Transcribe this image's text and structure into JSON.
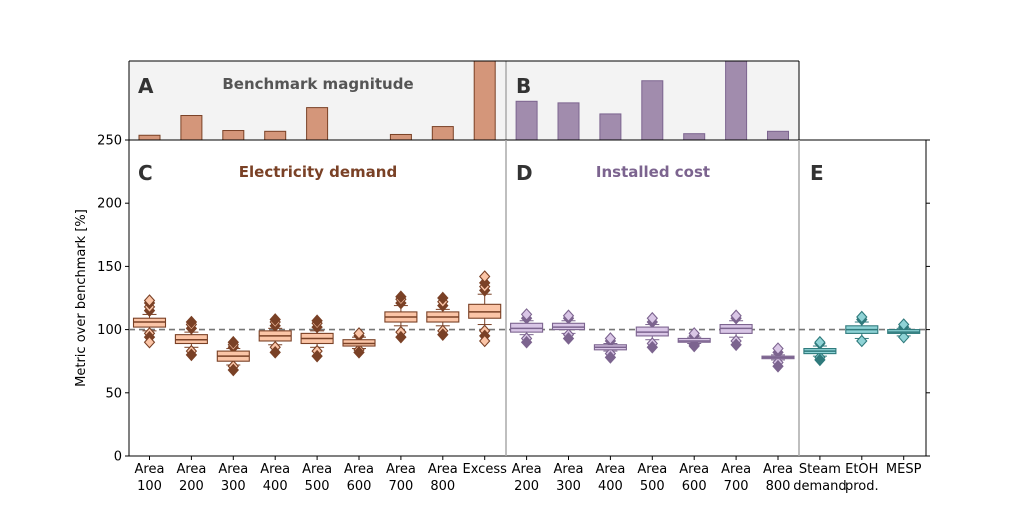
{
  "chart_data": {
    "type": "boxplot",
    "ylabel": "Metric over benchmark [%]",
    "yticks": [
      0,
      50,
      100,
      150,
      200,
      250
    ],
    "ylim": [
      0,
      250
    ],
    "benchmark_reference": 100,
    "top_panel": {
      "letters": [
        "A",
        "B"
      ],
      "title": "Benchmark magnitude",
      "bars": [
        {
          "group": "electricity",
          "value": 0.06
        },
        {
          "group": "electricity",
          "value": 0.31
        },
        {
          "group": "electricity",
          "value": 0.12
        },
        {
          "group": "electricity",
          "value": 0.11
        },
        {
          "group": "electricity",
          "value": 0.41
        },
        {
          "group": "electricity",
          "value": 0.0
        },
        {
          "group": "electricity",
          "value": 0.07
        },
        {
          "group": "electricity",
          "value": 0.17
        },
        {
          "group": "electricity",
          "value": 1.0
        },
        {
          "group": "cost",
          "value": 0.49
        },
        {
          "group": "cost",
          "value": 0.47
        },
        {
          "group": "cost",
          "value": 0.33
        },
        {
          "group": "cost",
          "value": 0.75
        },
        {
          "group": "cost",
          "value": 0.08
        },
        {
          "group": "cost",
          "value": 1.0
        },
        {
          "group": "cost",
          "value": 0.11
        }
      ]
    },
    "panels": [
      {
        "letter": "C",
        "title": "Electricity demand",
        "title_color": "#7a4126"
      },
      {
        "letter": "D",
        "title": "Installed cost",
        "title_color": "#7c648f"
      },
      {
        "letter": "E",
        "title": "",
        "title_color": ""
      }
    ],
    "categories": [
      {
        "label": [
          "Area",
          "100"
        ],
        "group": "electricity",
        "q1": 102,
        "median": 106,
        "q3": 109,
        "wlo": 99,
        "whi": 112,
        "outliers_low": [
          97,
          94,
          90
        ],
        "outliers_high": [
          115,
          118,
          121,
          123
        ]
      },
      {
        "label": [
          "Area",
          "200"
        ],
        "group": "electricity",
        "q1": 89,
        "median": 92,
        "q3": 96,
        "wlo": 86,
        "whi": 98,
        "outliers_low": [
          83,
          80
        ],
        "outliers_high": [
          101,
          104,
          106
        ]
      },
      {
        "label": [
          "Area",
          "300"
        ],
        "group": "electricity",
        "q1": 75,
        "median": 79,
        "q3": 83,
        "wlo": 72,
        "whi": 85,
        "outliers_low": [
          71,
          68
        ],
        "outliers_high": [
          86,
          88,
          90
        ]
      },
      {
        "label": [
          "Area",
          "400"
        ],
        "group": "electricity",
        "q1": 91,
        "median": 95,
        "q3": 99,
        "wlo": 88,
        "whi": 101,
        "outliers_low": [
          86,
          82
        ],
        "outliers_high": [
          103,
          106,
          108
        ]
      },
      {
        "label": [
          "Area",
          "500"
        ],
        "group": "electricity",
        "q1": 89,
        "median": 93,
        "q3": 97,
        "wlo": 86,
        "whi": 99,
        "outliers_low": [
          83,
          79
        ],
        "outliers_high": [
          102,
          105,
          107
        ]
      },
      {
        "label": [
          "Area",
          "600"
        ],
        "group": "electricity",
        "q1": 87,
        "median": 89,
        "q3": 92,
        "wlo": 85,
        "whi": 94,
        "outliers_low": [
          84,
          82
        ],
        "outliers_high": [
          95,
          97
        ]
      },
      {
        "label": [
          "Area",
          "700"
        ],
        "group": "electricity",
        "q1": 106,
        "median": 110,
        "q3": 114,
        "wlo": 103,
        "whi": 119,
        "outliers_low": [
          98,
          94
        ],
        "outliers_high": [
          121,
          124,
          126
        ]
      },
      {
        "label": [
          "Area",
          "800"
        ],
        "group": "electricity",
        "q1": 106,
        "median": 110,
        "q3": 114,
        "wlo": 103,
        "whi": 116,
        "outliers_low": [
          99,
          96
        ],
        "outliers_high": [
          119,
          122,
          125
        ]
      },
      {
        "label": [
          "Excess",
          ""
        ],
        "group": "electricity",
        "q1": 109,
        "median": 114,
        "q3": 120,
        "wlo": 104,
        "whi": 128,
        "outliers_low": [
          99,
          95,
          91
        ],
        "outliers_high": [
          131,
          134,
          137,
          142
        ]
      },
      {
        "label": [
          "Area",
          "200"
        ],
        "group": "cost",
        "q1": 98,
        "median": 101,
        "q3": 105,
        "wlo": 96,
        "whi": 107,
        "outliers_low": [
          93,
          90
        ],
        "outliers_high": [
          109,
          112
        ]
      },
      {
        "label": [
          "Area",
          "300"
        ],
        "group": "cost",
        "q1": 100,
        "median": 102,
        "q3": 105,
        "wlo": 97,
        "whi": 107,
        "outliers_low": [
          96,
          93
        ],
        "outliers_high": [
          109,
          111
        ]
      },
      {
        "label": [
          "Area",
          "400"
        ],
        "group": "cost",
        "q1": 84,
        "median": 86,
        "q3": 88,
        "wlo": 83,
        "whi": 89,
        "outliers_low": [
          81,
          78
        ],
        "outliers_high": [
          91,
          93
        ]
      },
      {
        "label": [
          "Area",
          "500"
        ],
        "group": "cost",
        "q1": 95,
        "median": 98,
        "q3": 102,
        "wlo": 92,
        "whi": 104,
        "outliers_low": [
          89,
          86
        ],
        "outliers_high": [
          106,
          109
        ]
      },
      {
        "label": [
          "Area",
          "600"
        ],
        "group": "cost",
        "q1": 90,
        "median": 91,
        "q3": 93,
        "wlo": 89,
        "whi": 94,
        "outliers_low": [
          88,
          87
        ],
        "outliers_high": [
          95,
          97
        ]
      },
      {
        "label": [
          "Area",
          "700"
        ],
        "group": "cost",
        "q1": 97,
        "median": 101,
        "q3": 104,
        "wlo": 94,
        "whi": 107,
        "outliers_low": [
          91,
          88
        ],
        "outliers_high": [
          109,
          111
        ]
      },
      {
        "label": [
          "Area",
          "800"
        ],
        "group": "cost",
        "q1": 77,
        "median": 78,
        "q3": 79,
        "wlo": 76,
        "whi": 80,
        "outliers_low": [
          74,
          71
        ],
        "outliers_high": [
          82,
          85
        ]
      },
      {
        "label": [
          "Steam",
          "demand"
        ],
        "group": "teal",
        "q1": 81,
        "median": 83,
        "q3": 85,
        "wlo": 79,
        "whi": 87,
        "outliers_low": [
          78,
          76
        ],
        "outliers_high": [
          89,
          90
        ]
      },
      {
        "label": [
          "EtOH",
          "prod."
        ],
        "group": "teal",
        "q1": 97,
        "median": 100,
        "q3": 103,
        "wlo": 93,
        "whi": 106,
        "outliers_low": [
          91
        ],
        "outliers_high": [
          108,
          110
        ]
      },
      {
        "label": [
          "MESP",
          ""
        ],
        "group": "teal",
        "q1": 97,
        "median": 98,
        "q3": 100,
        "wlo": 95,
        "whi": 101,
        "outliers_low": [
          94
        ],
        "outliers_high": [
          102,
          104
        ]
      }
    ],
    "colors": {
      "electricity": {
        "fill": "#fbc5a7",
        "edge": "#7a4126",
        "bar": "#d4967a"
      },
      "cost": {
        "fill": "#d9c6e6",
        "edge": "#7c648f",
        "bar": "#a18cad"
      },
      "teal": {
        "fill": "#8fd3d6",
        "edge": "#2f7a7c"
      },
      "reference_line": "#777777",
      "top_panel_bg": "#f3f3f3",
      "divider": "#aaaaaa"
    }
  }
}
